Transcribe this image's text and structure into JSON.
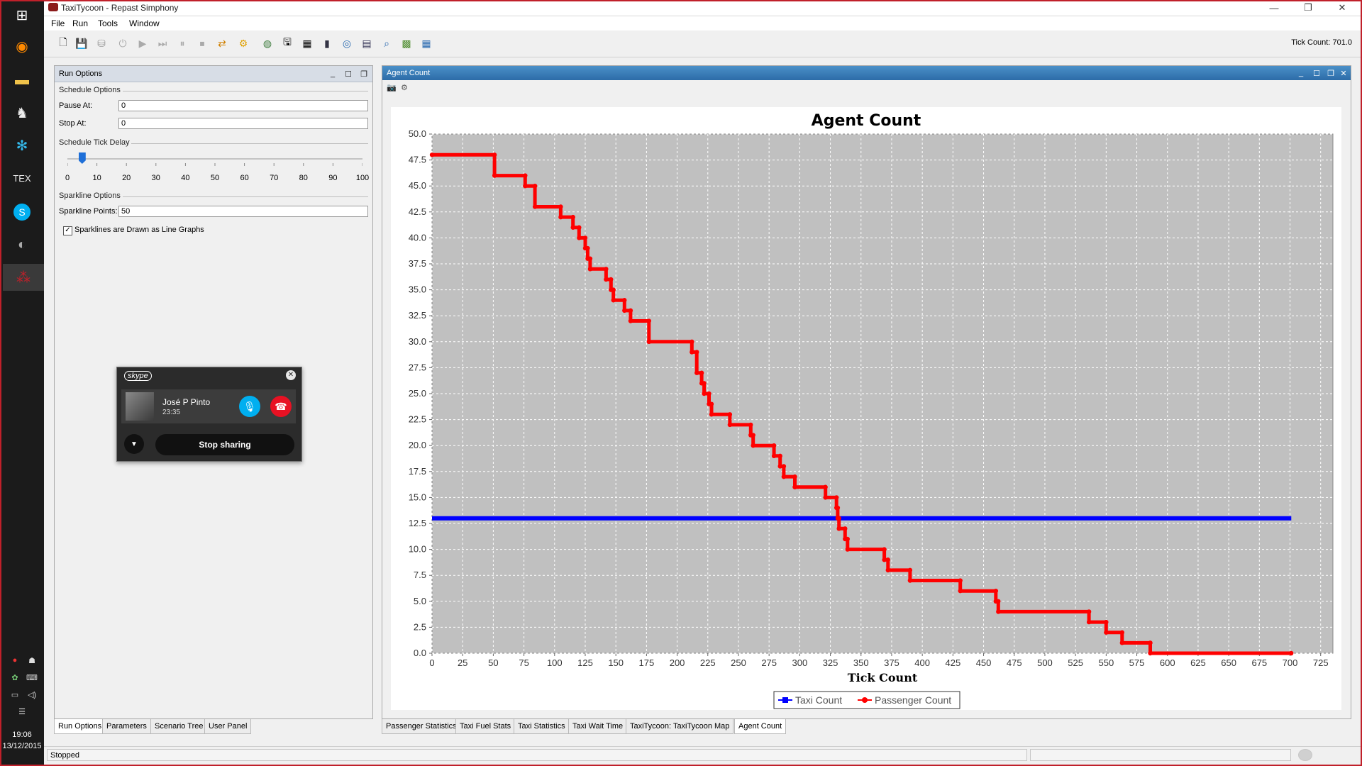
{
  "window": {
    "title": "TaxiTycoon - Repast Simphony"
  },
  "menu": [
    "File",
    "Run",
    "Tools",
    "Window"
  ],
  "toolbar": {
    "tick_count_text": "Tick Count: 701.0"
  },
  "run_options": {
    "title": "Run Options",
    "schedule_options": "Schedule Options",
    "pause_label": "Pause At:",
    "pause_value": "0",
    "stop_label": "Stop At:",
    "stop_value": "0",
    "tick_delay_label": "Schedule Tick Delay",
    "tick_delay_value": 5,
    "slider_labels": [
      "0",
      "10",
      "20",
      "30",
      "40",
      "50",
      "60",
      "70",
      "80",
      "90",
      "100"
    ],
    "sparkline_options": "Sparkline Options",
    "sparkline_points_label": "Sparkline Points:",
    "sparkline_points_value": "50",
    "sparkline_checkbox_label": "Sparklines are Drawn as Line Graphs",
    "sparkline_checked": true
  },
  "left_tabs": [
    "Run Options",
    "Parameters",
    "Scenario Tree",
    "User Panel"
  ],
  "right_panel_title": "Agent Count",
  "right_tabs": [
    "Passenger Statistics",
    "Taxi Fuel Stats",
    "Taxi Statistics",
    "Taxi Wait Time",
    "TaxiTycoon: TaxiTycoon Map",
    "Agent Count"
  ],
  "status": {
    "text": "Stopped"
  },
  "clock": {
    "time": "19:06",
    "date": "13/12/2015"
  },
  "skype": {
    "logo": "skype",
    "caller": "José P Pinto",
    "duration": "23:35",
    "stop_sharing": "Stop sharing"
  },
  "colors": {
    "taxi": "#0000ff",
    "passenger": "#ff0000",
    "plot_bg": "#c0c0c0",
    "accent": "#2d6ca8"
  },
  "chart_data": {
    "type": "line",
    "title": "Agent Count",
    "xlabel": "Tick Count",
    "ylabel": "",
    "xlim": [
      0,
      735
    ],
    "ylim": [
      0,
      50
    ],
    "xticks": [
      0,
      25,
      50,
      75,
      100,
      125,
      150,
      175,
      200,
      225,
      250,
      275,
      300,
      325,
      350,
      375,
      400,
      425,
      450,
      475,
      500,
      525,
      550,
      575,
      600,
      625,
      650,
      675,
      700,
      725
    ],
    "yticks": [
      "0.0",
      "2.5",
      "5.0",
      "7.5",
      "10.0",
      "12.5",
      "15.0",
      "17.5",
      "20.0",
      "22.5",
      "25.0",
      "27.5",
      "30.0",
      "32.5",
      "35.0",
      "37.5",
      "40.0",
      "42.5",
      "45.0",
      "47.5",
      "50.0"
    ],
    "grid": true,
    "legend_position": "bottom",
    "series": [
      {
        "name": "Taxi Count",
        "points": [
          [
            0,
            13
          ],
          [
            701,
            13
          ]
        ]
      },
      {
        "name": "Passenger Count",
        "points": [
          [
            0,
            48
          ],
          [
            51,
            48
          ],
          [
            51,
            46
          ],
          [
            76,
            46
          ],
          [
            76,
            45
          ],
          [
            84,
            45
          ],
          [
            84,
            43
          ],
          [
            105,
            43
          ],
          [
            105,
            42
          ],
          [
            115,
            42
          ],
          [
            115,
            41
          ],
          [
            120,
            41
          ],
          [
            120,
            40
          ],
          [
            125,
            40
          ],
          [
            125,
            39
          ],
          [
            127,
            39
          ],
          [
            127,
            38
          ],
          [
            129,
            38
          ],
          [
            129,
            37
          ],
          [
            142,
            37
          ],
          [
            142,
            36
          ],
          [
            146,
            36
          ],
          [
            146,
            35
          ],
          [
            148,
            35
          ],
          [
            148,
            34
          ],
          [
            157,
            34
          ],
          [
            157,
            33
          ],
          [
            162,
            33
          ],
          [
            162,
            32
          ],
          [
            177,
            32
          ],
          [
            177,
            30
          ],
          [
            212,
            30
          ],
          [
            212,
            29
          ],
          [
            216,
            29
          ],
          [
            216,
            27
          ],
          [
            220,
            27
          ],
          [
            220,
            26
          ],
          [
            222,
            26
          ],
          [
            222,
            25
          ],
          [
            226,
            25
          ],
          [
            226,
            24
          ],
          [
            228,
            24
          ],
          [
            228,
            23
          ],
          [
            243,
            23
          ],
          [
            243,
            22
          ],
          [
            260,
            22
          ],
          [
            260,
            21
          ],
          [
            262,
            21
          ],
          [
            262,
            20
          ],
          [
            279,
            20
          ],
          [
            279,
            19
          ],
          [
            284,
            19
          ],
          [
            284,
            18
          ],
          [
            287,
            18
          ],
          [
            287,
            17
          ],
          [
            296,
            17
          ],
          [
            296,
            16
          ],
          [
            321,
            16
          ],
          [
            321,
            15
          ],
          [
            330,
            15
          ],
          [
            330,
            14
          ],
          [
            331,
            14
          ],
          [
            331,
            13
          ],
          [
            332,
            13
          ],
          [
            332,
            12
          ],
          [
            337,
            12
          ],
          [
            337,
            11
          ],
          [
            339,
            11
          ],
          [
            339,
            10
          ],
          [
            369,
            10
          ],
          [
            369,
            9
          ],
          [
            372,
            9
          ],
          [
            372,
            8
          ],
          [
            390,
            8
          ],
          [
            390,
            7
          ],
          [
            431,
            7
          ],
          [
            431,
            6
          ],
          [
            460,
            6
          ],
          [
            460,
            5
          ],
          [
            462,
            5
          ],
          [
            462,
            4
          ],
          [
            536,
            4
          ],
          [
            536,
            3
          ],
          [
            550,
            3
          ],
          [
            550,
            2
          ],
          [
            563,
            2
          ],
          [
            563,
            1
          ],
          [
            586,
            1
          ],
          [
            586,
            0
          ],
          [
            701,
            0
          ]
        ]
      }
    ]
  }
}
